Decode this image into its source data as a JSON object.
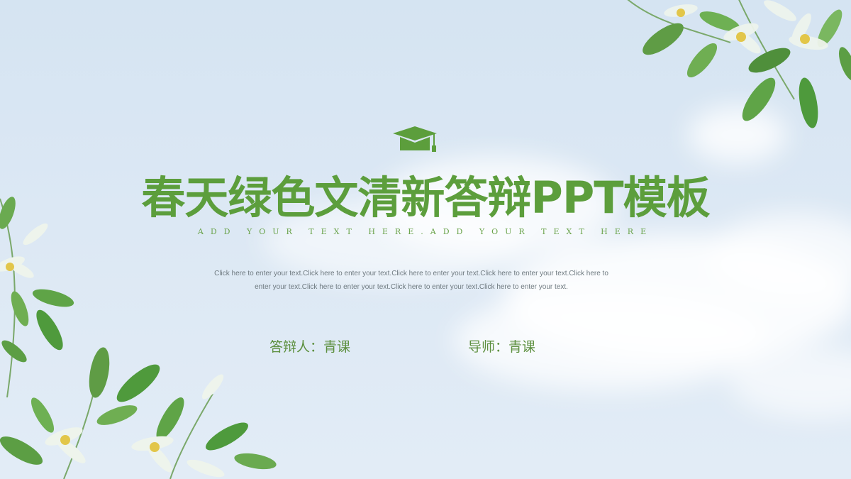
{
  "slide": {
    "title": "春天绿色文清新答辩PPT模板",
    "subtitle": "ADD YOUR TEXT HERE.ADD YOUR TEXT HERE",
    "body": "Click here to enter your text.Click here to enter your text.Click here to enter your text.Click here to enter your text.Click here to enter your text.Click here to enter your text.Click here to enter your text.Click here to enter your text.",
    "defender": "答辩人：青课",
    "advisor": "导师：青课"
  },
  "icons": {
    "header_icon": "graduation-cap-icon"
  },
  "colors": {
    "accent_green": "#5c9e3c",
    "background": "#d9e6f3",
    "body_text": "#6f7a80"
  }
}
